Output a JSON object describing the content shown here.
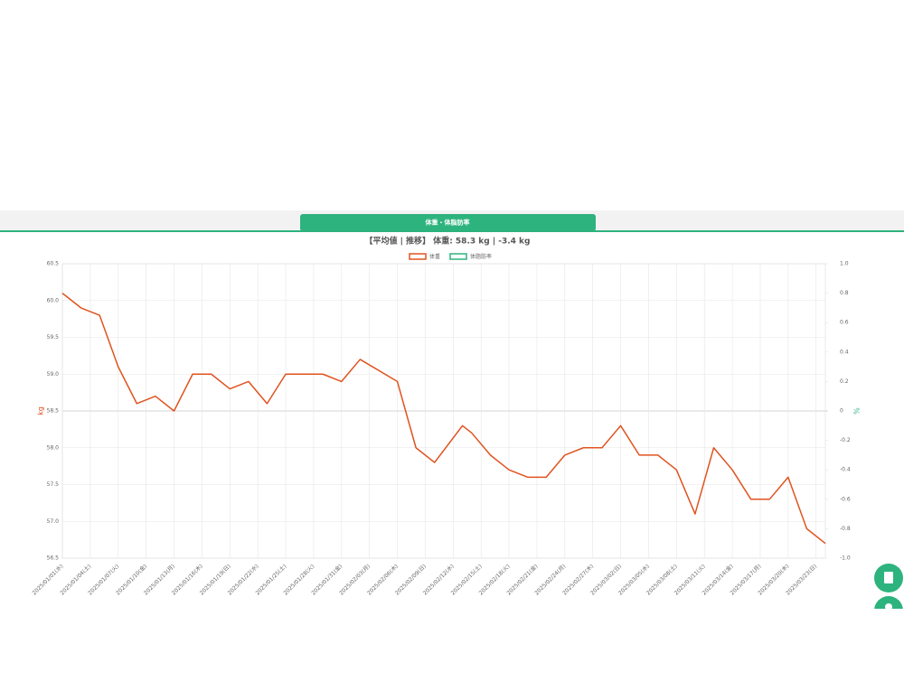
{
  "tab": {
    "label": "体重・体脂肪率"
  },
  "chart_data": {
    "type": "line",
    "title": "【平均値 | 推移】 体重: 58.3 kg | -3.4 kg",
    "y_label": "kg",
    "y2_label": "%",
    "x": [
      "2025/01/01",
      "2025/01/03",
      "2025/01/05",
      "2025/01/07",
      "2025/01/09",
      "2025/01/11",
      "2025/01/13",
      "2025/01/15",
      "2025/01/17",
      "2025/01/19",
      "2025/01/21",
      "2025/01/23",
      "2025/01/25",
      "2025/01/29",
      "2025/01/31",
      "2025/02/02",
      "2025/02/06",
      "2025/02/08",
      "2025/02/10",
      "2025/02/13",
      "2025/02/14",
      "2025/02/16",
      "2025/02/18",
      "2025/02/20",
      "2025/02/22",
      "2025/02/24",
      "2025/02/26",
      "2025/02/28",
      "2025/03/02",
      "2025/03/04",
      "2025/03/06",
      "2025/03/08",
      "2025/03/10",
      "2025/03/12",
      "2025/03/14",
      "2025/03/16",
      "2025/03/18",
      "2025/03/20",
      "2025/03/22",
      "2025/03/24"
    ],
    "series": [
      {
        "name": "体重",
        "color": "#e0531f",
        "values": [
          60.1,
          59.9,
          59.8,
          59.1,
          58.6,
          58.7,
          58.5,
          59.0,
          59.0,
          58.8,
          58.9,
          58.6,
          59.0,
          59.0,
          58.9,
          59.2,
          58.9,
          58.0,
          57.8,
          58.3,
          58.2,
          57.9,
          57.7,
          57.6,
          57.6,
          57.9,
          58.0,
          58.0,
          58.3,
          57.9,
          57.9,
          57.7,
          57.1,
          58.0,
          57.7,
          57.3,
          57.3,
          57.6,
          56.9,
          56.7
        ]
      },
      {
        "name": "体脂肪率",
        "color": "#2db37d",
        "axis": "y2",
        "values": [
          null,
          null,
          null,
          null,
          null,
          null,
          null,
          null,
          null,
          null,
          null,
          null,
          null,
          null,
          null,
          null,
          null,
          null,
          null,
          null,
          null,
          null,
          null,
          null,
          null,
          null,
          null,
          null,
          null,
          null,
          null,
          null,
          null,
          null,
          null,
          null,
          null,
          null,
          null,
          null
        ]
      }
    ],
    "xlim": [
      "2025/01/01",
      "2025/03/24"
    ],
    "xticks": [
      "2025/01/01(水)",
      "2025/01/04(土)",
      "2025/01/07(火)",
      "2025/01/10(金)",
      "2025/01/13(月)",
      "2025/01/16(木)",
      "2025/01/19(日)",
      "2025/01/22(水)",
      "2025/01/25(土)",
      "2025/01/28(火)",
      "2025/01/31(金)",
      "2025/02/03(月)",
      "2025/02/06(木)",
      "2025/02/09(日)",
      "2025/02/12(水)",
      "2025/02/15(土)",
      "2025/02/18(火)",
      "2025/02/21(金)",
      "2025/02/24(月)",
      "2025/02/27(木)",
      "2025/03/02(日)",
      "2025/03/05(水)",
      "2025/03/08(土)",
      "2025/03/11(火)",
      "2025/03/14(金)",
      "2025/03/17(月)",
      "2025/03/20(木)",
      "2025/03/23(日)"
    ],
    "ylim": [
      56.5,
      60.5
    ],
    "yticks": [
      56.5,
      {
        "value": 57,
        "label": "57.0"
      },
      57.5,
      {
        "value": 58,
        "label": "58.0"
      },
      58.5,
      {
        "value": 59,
        "label": "59.0"
      },
      59.5,
      {
        "value": 60,
        "label": "60.0"
      },
      60.5
    ],
    "y2lim": [
      -1,
      1
    ],
    "y2ticks": [
      {
        "value": -1,
        "label": "-1.0"
      },
      -0.8,
      -0.6,
      -0.4,
      -0.2,
      0,
      0.2,
      0.4,
      0.6,
      0.8,
      {
        "value": 1,
        "label": "1.0"
      }
    ],
    "grid": true
  }
}
